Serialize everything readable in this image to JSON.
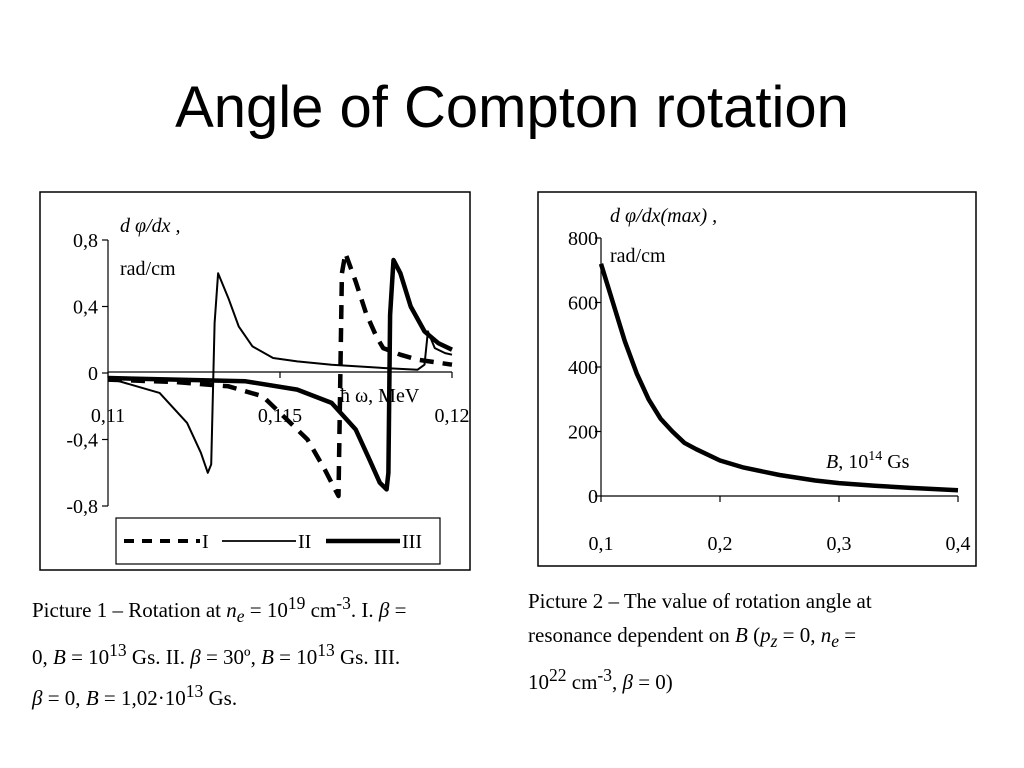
{
  "slide": {
    "title": "Angle of Compton rotation"
  },
  "chart_data": [
    {
      "type": "line",
      "ylabel_line1": "d φ/dx ,",
      "ylabel_line2": "rad/cm",
      "xlabel": "ħ ω, MeV",
      "ylim": [
        -0.8,
        0.8
      ],
      "yticks": [
        "0,8",
        "0,4",
        "0",
        "-0,4",
        "-0,8"
      ],
      "ytick_values": [
        0.8,
        0.4,
        0,
        -0.4,
        -0.8
      ],
      "xlim": [
        0.11,
        0.12
      ],
      "xticks": [
        "0,11",
        "0,115",
        "0,12"
      ],
      "xtick_values": [
        0.11,
        0.115,
        0.12
      ],
      "grid": false,
      "legend": "bottom",
      "series": [
        {
          "name": "I",
          "style": "dashed",
          "x": [
            0.11,
            0.112,
            0.1135,
            0.1145,
            0.115,
            0.1158,
            0.1163,
            0.1166,
            0.1167,
            0.1168,
            0.1169,
            0.1172,
            0.1175,
            0.1178,
            0.118,
            0.1185,
            0.119,
            0.12
          ],
          "y": [
            -0.04,
            -0.055,
            -0.08,
            -0.14,
            -0.24,
            -0.4,
            -0.58,
            -0.7,
            -0.74,
            0.6,
            0.72,
            0.55,
            0.36,
            0.22,
            0.15,
            0.11,
            0.08,
            0.05
          ]
        },
        {
          "name": "II",
          "style": "thin",
          "x": [
            0.11,
            0.1115,
            0.1123,
            0.1127,
            0.1129,
            0.113,
            0.1131,
            0.1132,
            0.1135,
            0.1138,
            0.1142,
            0.1148,
            0.1155,
            0.1165,
            0.118,
            0.119,
            0.1192,
            0.1193,
            0.1195,
            0.1198,
            0.12
          ],
          "y": [
            -0.03,
            -0.12,
            -0.3,
            -0.48,
            -0.6,
            -0.55,
            0.3,
            0.6,
            0.45,
            0.28,
            0.16,
            0.09,
            0.07,
            0.05,
            0.03,
            0.02,
            0.05,
            0.25,
            0.15,
            0.12,
            0.11
          ]
        },
        {
          "name": "III",
          "style": "thick",
          "x": [
            0.11,
            0.114,
            0.1155,
            0.1165,
            0.1172,
            0.1176,
            0.1179,
            0.1181,
            0.11815,
            0.1182,
            0.1183,
            0.1185,
            0.1188,
            0.1192,
            0.1196,
            0.12
          ],
          "y": [
            -0.03,
            -0.05,
            -0.1,
            -0.18,
            -0.34,
            -0.52,
            -0.66,
            -0.7,
            -0.6,
            0.35,
            0.68,
            0.6,
            0.4,
            0.25,
            0.18,
            0.14
          ]
        }
      ]
    },
    {
      "type": "line",
      "ylabel_line1": "d φ/dx(max) ,",
      "ylabel_line2": "rad/cm",
      "xlabel_var": "B",
      "xlabel_unit_pre": ", 10",
      "xlabel_exp": "14",
      "xlabel_unit_post": " Gs",
      "ylim": [
        0,
        800
      ],
      "yticks": [
        "800",
        "600",
        "400",
        "200",
        "0"
      ],
      "ytick_values": [
        800,
        600,
        400,
        200,
        0
      ],
      "xlim": [
        0.1,
        0.4
      ],
      "xticks": [
        "0,1",
        "0,2",
        "0,3",
        "0,4"
      ],
      "xtick_values": [
        0.1,
        0.2,
        0.3,
        0.4
      ],
      "grid": false,
      "series": [
        {
          "style": "thick",
          "x": [
            0.1,
            0.11,
            0.12,
            0.13,
            0.14,
            0.15,
            0.16,
            0.17,
            0.18,
            0.2,
            0.22,
            0.25,
            0.28,
            0.3,
            0.33,
            0.36,
            0.4
          ],
          "y": [
            720,
            600,
            480,
            380,
            300,
            240,
            200,
            165,
            145,
            110,
            88,
            65,
            48,
            40,
            32,
            25,
            18
          ]
        }
      ]
    }
  ],
  "caption1": {
    "line1_pre": "Picture 1 – Rotation at ",
    "ne_n": "n",
    "ne_e": "e",
    "line1_mid": " = 10",
    "exp19": "19",
    "line1_cm": " cm",
    "exp_m3": "-3",
    "line1_post": ". I. ",
    "beta": "β",
    "eq": " =",
    "line2_pre": "0, ",
    "b": "B",
    "line2_a": " = 10",
    "exp13a": "13",
    "line2_b": " Gs. II. ",
    "beta2": "β",
    "line2_c": " = 30º, ",
    "b2": "B",
    "line2_d": " = 10",
    "exp13b": "13",
    "line2_e": " Gs. III.",
    "beta3": "β",
    "line3_a": " = 0, ",
    "b3": "B",
    "line3_b": " = 1,02·10",
    "exp13c": "13",
    "line3_c": " Gs."
  },
  "caption2": {
    "line1": "Picture 2 – The value of rotation angle at",
    "line2_pre": "resonance dependent on ",
    "b": "B",
    "line2_mid": " (",
    "pz_p": "p",
    "pz_z": "z",
    "line2_eq0": " = 0,  ",
    "ne_n": "n",
    "ne_e": "e",
    "line2_eq": " =",
    "line3_a": "10",
    "exp22": "22",
    "line3_cm": " cm",
    "exp_m3": "-3",
    "line3_b": ",  ",
    "beta": "β",
    "line3_c": " = 0)"
  }
}
